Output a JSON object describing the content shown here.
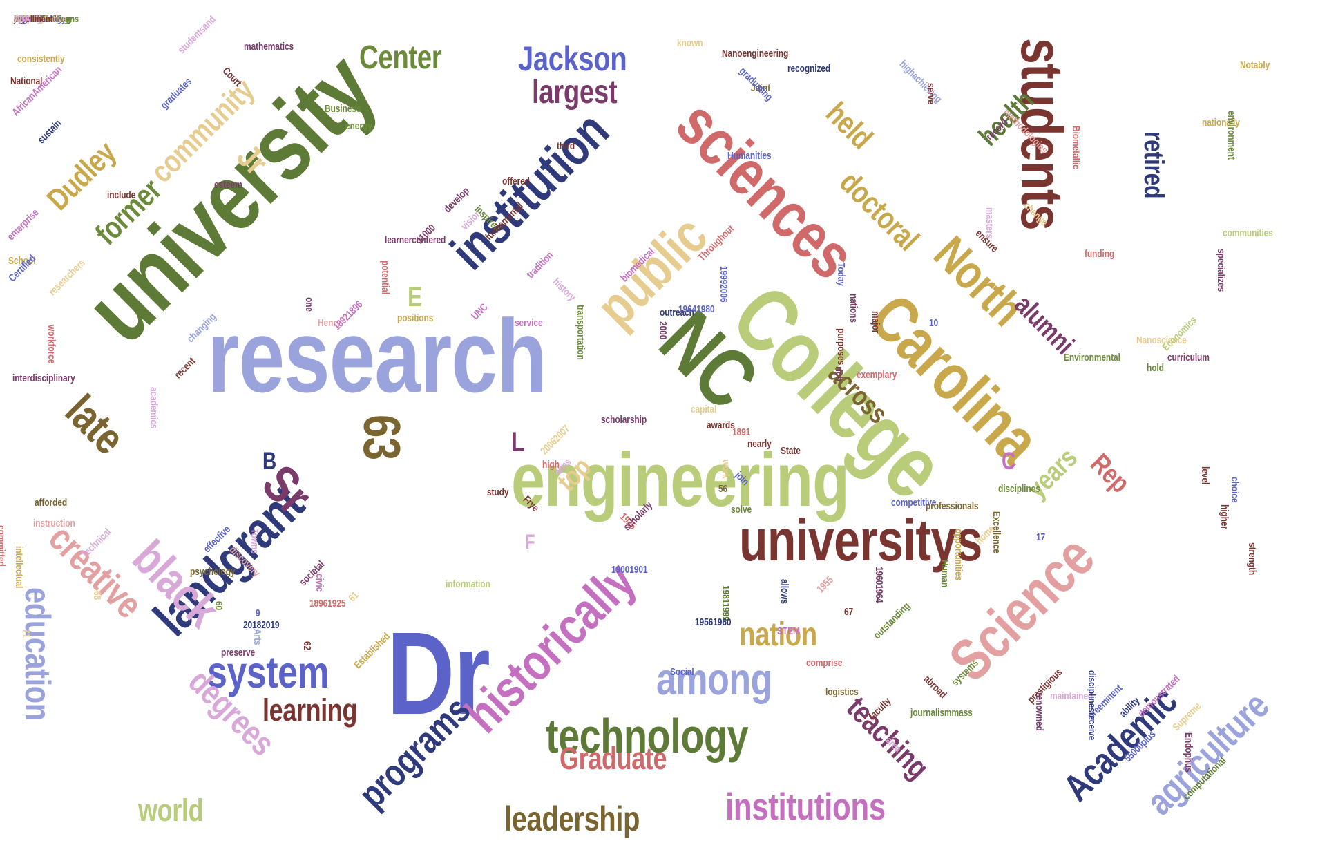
{
  "colors": {
    "olive_dark": "#5d7a36",
    "sage": "#b8cc7a",
    "periwinkle": "#9aa3dc",
    "indigo": "#2f3a7a",
    "blue": "#5b63c8",
    "rose": "#d06a6a",
    "pink": "#e2a0a0",
    "maroon": "#7a3530",
    "gold": "#c8a84a",
    "tan": "#e6cc8e",
    "brown": "#7a6530",
    "orchid": "#c46fc0",
    "plum": "#7a3a6a",
    "lilac": "#d8a8d8",
    "green": "#6b8a3a"
  },
  "words": [
    {
      "text": "research",
      "color": "periwinkle"
    },
    {
      "text": "university",
      "color": "olive_dark"
    },
    {
      "text": "engineering",
      "color": "sage"
    },
    {
      "text": "College",
      "color": "sage"
    },
    {
      "text": "Dr",
      "color": "blue"
    },
    {
      "text": "NC",
      "color": "olive_dark"
    },
    {
      "text": "sciences",
      "color": "rose"
    },
    {
      "text": "Carolina",
      "color": "gold"
    },
    {
      "text": "universitys",
      "color": "maroon"
    },
    {
      "text": "Science",
      "color": "pink"
    },
    {
      "text": "students",
      "color": "maroon"
    },
    {
      "text": "historically",
      "color": "orchid"
    },
    {
      "text": "landgrant",
      "color": "indigo"
    },
    {
      "text": "institution",
      "color": "indigo"
    },
    {
      "text": "technology",
      "color": "olive_dark"
    },
    {
      "text": "public",
      "color": "tan"
    },
    {
      "text": "North",
      "color": "gold"
    },
    {
      "text": "black",
      "color": "lilac"
    },
    {
      "text": "Sr",
      "color": "plum"
    },
    {
      "text": "63",
      "color": "brown"
    },
    {
      "text": "among",
      "color": "periwinkle"
    },
    {
      "text": "system",
      "color": "blue"
    },
    {
      "text": "Academic",
      "color": "indigo"
    },
    {
      "text": "agriculture",
      "color": "periwinkle"
    },
    {
      "text": "institutions",
      "color": "orchid"
    },
    {
      "text": "programs",
      "color": "indigo"
    },
    {
      "text": "creative",
      "color": "pink"
    },
    {
      "text": "education",
      "color": "periwinkle"
    },
    {
      "text": "degrees",
      "color": "lilac"
    },
    {
      "text": "late",
      "color": "brown"
    },
    {
      "text": "leadership",
      "color": "brown"
    },
    {
      "text": "learning",
      "color": "maroon"
    },
    {
      "text": "teaching",
      "color": "plum"
    },
    {
      "text": "Graduate",
      "color": "rose"
    },
    {
      "text": "world",
      "color": "sage"
    },
    {
      "text": "nation",
      "color": "gold"
    },
    {
      "text": "Jackson",
      "color": "blue"
    },
    {
      "text": "Center",
      "color": "green"
    },
    {
      "text": "largest",
      "color": "plum"
    },
    {
      "text": "former",
      "color": "green"
    },
    {
      "text": "community",
      "color": "tan"
    },
    {
      "text": "Dudley",
      "color": "gold"
    },
    {
      "text": "Jr",
      "color": "tan"
    },
    {
      "text": "doctoral",
      "color": "gold"
    },
    {
      "text": "held",
      "color": "gold"
    },
    {
      "text": "health",
      "color": "olive_dark"
    },
    {
      "text": "alumni",
      "color": "plum"
    },
    {
      "text": "retired",
      "color": "indigo"
    },
    {
      "text": "across",
      "color": "brown"
    },
    {
      "text": "years",
      "color": "sage"
    },
    {
      "text": "Rep",
      "color": "rose"
    },
    {
      "text": "top",
      "color": "tan"
    },
    {
      "text": "E",
      "color": "sage"
    },
    {
      "text": "L",
      "color": "plum"
    },
    {
      "text": "B",
      "color": "indigo"
    },
    {
      "text": "C",
      "color": "orchid"
    },
    {
      "text": "F",
      "color": "lilac"
    },
    {
      "text": "mathematics",
      "color": "plum"
    },
    {
      "text": "known",
      "color": "tan"
    },
    {
      "text": "Nanoengineering",
      "color": "maroon"
    },
    {
      "text": "highachieving",
      "color": "periwinkle"
    },
    {
      "text": "consistently",
      "color": "gold"
    },
    {
      "text": "National",
      "color": "maroon"
    },
    {
      "text": "studentsand",
      "color": "lilac"
    },
    {
      "text": "Court",
      "color": "maroon"
    },
    {
      "text": "graduates",
      "color": "blue"
    },
    {
      "text": "AfricanAmerican",
      "color": "orchid"
    },
    {
      "text": "Business",
      "color": "green"
    },
    {
      "text": "energy",
      "color": "green"
    },
    {
      "text": "sustain",
      "color": "indigo"
    },
    {
      "text": "esteem",
      "color": "plum"
    },
    {
      "text": "include",
      "color": "maroon"
    },
    {
      "text": "third",
      "color": "maroon"
    },
    {
      "text": "Humanities",
      "color": "blue"
    },
    {
      "text": "Joint",
      "color": "brown"
    },
    {
      "text": "recognized",
      "color": "indigo"
    },
    {
      "text": "serve",
      "color": "maroon"
    },
    {
      "text": "Notably",
      "color": "gold"
    },
    {
      "text": "nationally",
      "color": "gold"
    },
    {
      "text": "environment",
      "color": "green"
    },
    {
      "text": "communities",
      "color": "sage"
    },
    {
      "text": "specializes",
      "color": "plum"
    },
    {
      "text": "funding",
      "color": "rose"
    },
    {
      "text": "School",
      "color": "gold"
    },
    {
      "text": "Certified",
      "color": "blue"
    },
    {
      "text": "enterprise",
      "color": "orchid"
    },
    {
      "text": "researchers",
      "color": "tan"
    },
    {
      "text": "interdisciplinary",
      "color": "plum"
    },
    {
      "text": "workforce",
      "color": "rose"
    },
    {
      "text": "recent",
      "color": "maroon"
    },
    {
      "text": "changing",
      "color": "periwinkle"
    },
    {
      "text": "academics",
      "color": "lilac"
    },
    {
      "text": "Henry",
      "color": "pink"
    },
    {
      "text": "18921896",
      "color": "orchid"
    },
    {
      "text": "one",
      "color": "plum"
    },
    {
      "text": "UNC",
      "color": "orchid"
    },
    {
      "text": "tradition",
      "color": "orchid"
    },
    {
      "text": "history",
      "color": "lilac"
    },
    {
      "text": "service",
      "color": "orchid"
    },
    {
      "text": "11000",
      "color": "plum"
    },
    {
      "text": "vision",
      "color": "lilac"
    },
    {
      "text": "develop",
      "color": "plum"
    },
    {
      "text": "learnercentered",
      "color": "plum"
    },
    {
      "text": "inspired",
      "color": "green"
    },
    {
      "text": "offered",
      "color": "maroon"
    },
    {
      "text": "Throughout",
      "color": "rose"
    },
    {
      "text": "outreach",
      "color": "indigo"
    },
    {
      "text": "2000",
      "color": "plum"
    },
    {
      "text": "19641980",
      "color": "blue"
    },
    {
      "text": "19992006",
      "color": "blue"
    },
    {
      "text": "Today",
      "color": "blue"
    },
    {
      "text": "nations",
      "color": "plum"
    },
    {
      "text": "purposes",
      "color": "maroon"
    },
    {
      "text": "major",
      "color": "maroon"
    },
    {
      "text": "10",
      "color": "blue"
    },
    {
      "text": "rich",
      "color": "plum"
    },
    {
      "text": "exemplary",
      "color": "rose"
    },
    {
      "text": "ensure",
      "color": "maroon"
    },
    {
      "text": "masters",
      "color": "lilac"
    },
    {
      "text": "change",
      "color": "tan"
    },
    {
      "text": "Nanoscience",
      "color": "tan"
    },
    {
      "text": "Economics",
      "color": "sage"
    },
    {
      "text": "hold",
      "color": "green"
    },
    {
      "text": "curriculum",
      "color": "plum"
    },
    {
      "text": "scholarship",
      "color": "plum"
    },
    {
      "text": "capital",
      "color": "tan"
    },
    {
      "text": "awards",
      "color": "maroon"
    },
    {
      "text": "1891",
      "color": "rose"
    },
    {
      "text": "nearly",
      "color": "maroon"
    },
    {
      "text": "State",
      "color": "maroon"
    },
    {
      "text": "work",
      "color": "tan"
    },
    {
      "text": "56",
      "color": "brown"
    },
    {
      "text": "solve",
      "color": "green"
    },
    {
      "text": "join",
      "color": "blue"
    },
    {
      "text": "aims",
      "color": "lilac"
    },
    {
      "text": "20062007",
      "color": "tan"
    },
    {
      "text": "high",
      "color": "rose"
    },
    {
      "text": "Environmental",
      "color": "green"
    },
    {
      "text": "committed",
      "color": "rose"
    },
    {
      "text": "instruction",
      "color": "pink"
    },
    {
      "text": "afforded",
      "color": "brown"
    },
    {
      "text": "intellectual",
      "color": "gold"
    },
    {
      "text": "Technical",
      "color": "lilac"
    },
    {
      "text": "Towns",
      "color": "lilac"
    },
    {
      "text": "effective",
      "color": "blue"
    },
    {
      "text": "discovery",
      "color": "pink"
    },
    {
      "text": "psychology",
      "color": "brown"
    },
    {
      "text": "68",
      "color": "tan"
    },
    {
      "text": "71",
      "color": "tan"
    },
    {
      "text": "study",
      "color": "maroon"
    },
    {
      "text": "Frye",
      "color": "maroon"
    },
    {
      "text": "Human",
      "color": "green"
    },
    {
      "text": "17",
      "color": "blue"
    },
    {
      "text": "home",
      "color": "tan"
    },
    {
      "text": "disciplines",
      "color": "green"
    },
    {
      "text": "Excellence",
      "color": "brown"
    },
    {
      "text": "competitive",
      "color": "blue"
    },
    {
      "text": "professionals",
      "color": "brown"
    },
    {
      "text": "opportunities",
      "color": "gold"
    },
    {
      "text": "19601964",
      "color": "plum"
    },
    {
      "text": "strength",
      "color": "maroon"
    },
    {
      "text": "choice",
      "color": "blue"
    },
    {
      "text": "higher",
      "color": "maroon"
    },
    {
      "text": "level",
      "color": "maroon"
    },
    {
      "text": "1925",
      "color": "rose"
    },
    {
      "text": "scholarly",
      "color": "plum"
    },
    {
      "text": "19001901",
      "color": "blue"
    },
    {
      "text": "civic",
      "color": "orchid"
    },
    {
      "text": "societal",
      "color": "plum"
    },
    {
      "text": "9",
      "color": "blue"
    },
    {
      "text": "20182019",
      "color": "indigo"
    },
    {
      "text": "60",
      "color": "green"
    },
    {
      "text": "Arts",
      "color": "periwinkle"
    },
    {
      "text": "preserve",
      "color": "plum"
    },
    {
      "text": "Established",
      "color": "gold"
    },
    {
      "text": "61",
      "color": "tan"
    },
    {
      "text": "62",
      "color": "maroon"
    },
    {
      "text": "18961925",
      "color": "rose"
    },
    {
      "text": "information",
      "color": "sage"
    },
    {
      "text": "comprise",
      "color": "rose"
    },
    {
      "text": "19811999",
      "color": "olive_dark"
    },
    {
      "text": "1955",
      "color": "pink"
    },
    {
      "text": "allows",
      "color": "indigo"
    },
    {
      "text": "67",
      "color": "maroon"
    },
    {
      "text": "outstanding",
      "color": "green"
    },
    {
      "text": "STEM",
      "color": "orchid"
    },
    {
      "text": "19561960",
      "color": "indigo"
    },
    {
      "text": "Social",
      "color": "blue"
    },
    {
      "text": "logistics",
      "color": "brown"
    },
    {
      "text": "faculty",
      "color": "maroon"
    },
    {
      "text": "journalismmass",
      "color": "green"
    },
    {
      "text": "systems",
      "color": "green"
    },
    {
      "text": "area",
      "color": "lilac"
    },
    {
      "text": "abroad",
      "color": "maroon"
    },
    {
      "text": "prestigious",
      "color": "maroon"
    },
    {
      "text": "maintained",
      "color": "lilac"
    },
    {
      "text": "renowned",
      "color": "plum"
    },
    {
      "text": "preeminent",
      "color": "blue"
    },
    {
      "text": "disciplinesreceive",
      "color": "indigo"
    },
    {
      "text": "ability",
      "color": "indigo"
    },
    {
      "text": "Supreme",
      "color": "tan"
    },
    {
      "text": "demonstrated",
      "color": "orchid"
    },
    {
      "text": "55000plus",
      "color": "blue"
    },
    {
      "text": "Endophus",
      "color": "plum"
    },
    {
      "text": "computational",
      "color": "olive_dark"
    },
    {
      "text": "graduating",
      "color": "blue"
    },
    {
      "text": "record",
      "color": "plum"
    },
    {
      "text": "methodologies",
      "color": "pink"
    },
    {
      "text": "Biometallic",
      "color": "rose"
    },
    {
      "text": "biomedical",
      "color": "orchid"
    },
    {
      "text": "transportation",
      "color": "green"
    },
    {
      "text": "positions",
      "color": "gold"
    },
    {
      "text": "potential",
      "color": "rose"
    },
    {
      "text": "fundamental",
      "color": "maroon"
    },
    {
      "text": "scholars",
      "color": "gold"
    },
    {
      "text": "Materials",
      "color": "maroon"
    },
    {
      "text": "applications",
      "color": "indigo"
    },
    {
      "text": "Revolutionizing",
      "color": "olive_dark"
    },
    {
      "text": "bachelors",
      "color": "brown"
    },
    {
      "text": "Foundation",
      "color": "maroon"
    },
    {
      "text": "baccalaureate",
      "color": "orchid"
    },
    {
      "text": "Agricultural",
      "color": "maroon"
    },
    {
      "text": "justice",
      "color": "maroon"
    },
    {
      "text": "20072009",
      "color": "tan"
    },
    {
      "text": "advanced",
      "color": "rose"
    },
    {
      "text": "adapted",
      "color": "rose"
    },
    {
      "text": "engineers",
      "color": "blue"
    },
    {
      "text": "around",
      "color": "brown"
    },
    {
      "text": "industries",
      "color": "green"
    },
    {
      "text": "accountants",
      "color": "blue"
    },
    {
      "text": "nanotechnology",
      "color": "green"
    },
    {
      "text": "AfricanAmericans",
      "color": "green"
    },
    {
      "text": "communication",
      "color": "green"
    },
    {
      "text": "biotechnology",
      "color": "blue"
    },
    {
      "text": "fulfilling",
      "color": "tan"
    },
    {
      "text": "transformative",
      "color": "tan"
    },
    {
      "text": "ranking",
      "color": "lilac"
    },
    {
      "text": "nanobio",
      "color": "orchid"
    },
    {
      "text": "enrollment",
      "color": "maroon"
    },
    {
      "text": "ATs",
      "color": "orchid"
    },
    {
      "text": "53",
      "color": "olive_dark"
    },
    {
      "text": "77",
      "color": "tan"
    },
    {
      "text": "NBA",
      "color": "lilac"
    }
  ]
}
